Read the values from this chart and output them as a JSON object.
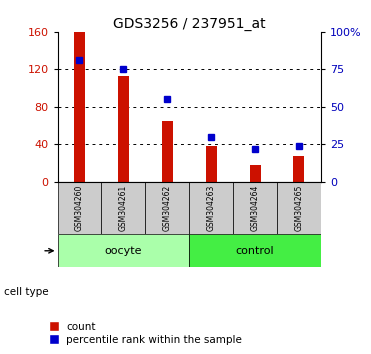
{
  "title": "GDS3256 / 237951_at",
  "samples": [
    "GSM304260",
    "GSM304261",
    "GSM304262",
    "GSM304263",
    "GSM304264",
    "GSM304265"
  ],
  "counts": [
    160,
    113,
    65,
    38,
    18,
    28
  ],
  "percentiles": [
    81,
    75,
    55,
    30,
    22,
    24
  ],
  "groups": [
    {
      "label": "oocyte",
      "indices": [
        0,
        1,
        2
      ],
      "color": "#aaffaa"
    },
    {
      "label": "control",
      "indices": [
        3,
        4,
        5
      ],
      "color": "#44ee44"
    }
  ],
  "left_ylim": [
    0,
    160
  ],
  "right_ylim": [
    0,
    100
  ],
  "left_yticks": [
    0,
    40,
    80,
    120,
    160
  ],
  "right_yticks": [
    0,
    25,
    50,
    75,
    100
  ],
  "right_yticklabels": [
    "0",
    "25",
    "50",
    "75",
    "100%"
  ],
  "bar_color": "#cc1100",
  "dot_color": "#0000cc",
  "title_fontsize": 10,
  "tick_label_color_left": "#cc1100",
  "tick_label_color_right": "#0000bb",
  "legend_count_label": "count",
  "legend_pct_label": "percentile rank within the sample",
  "cell_type_label": "cell type",
  "bar_width": 0.25,
  "sample_box_color": "#cccccc",
  "oocyte_color": "#aaffaa",
  "control_color": "#44ee44"
}
